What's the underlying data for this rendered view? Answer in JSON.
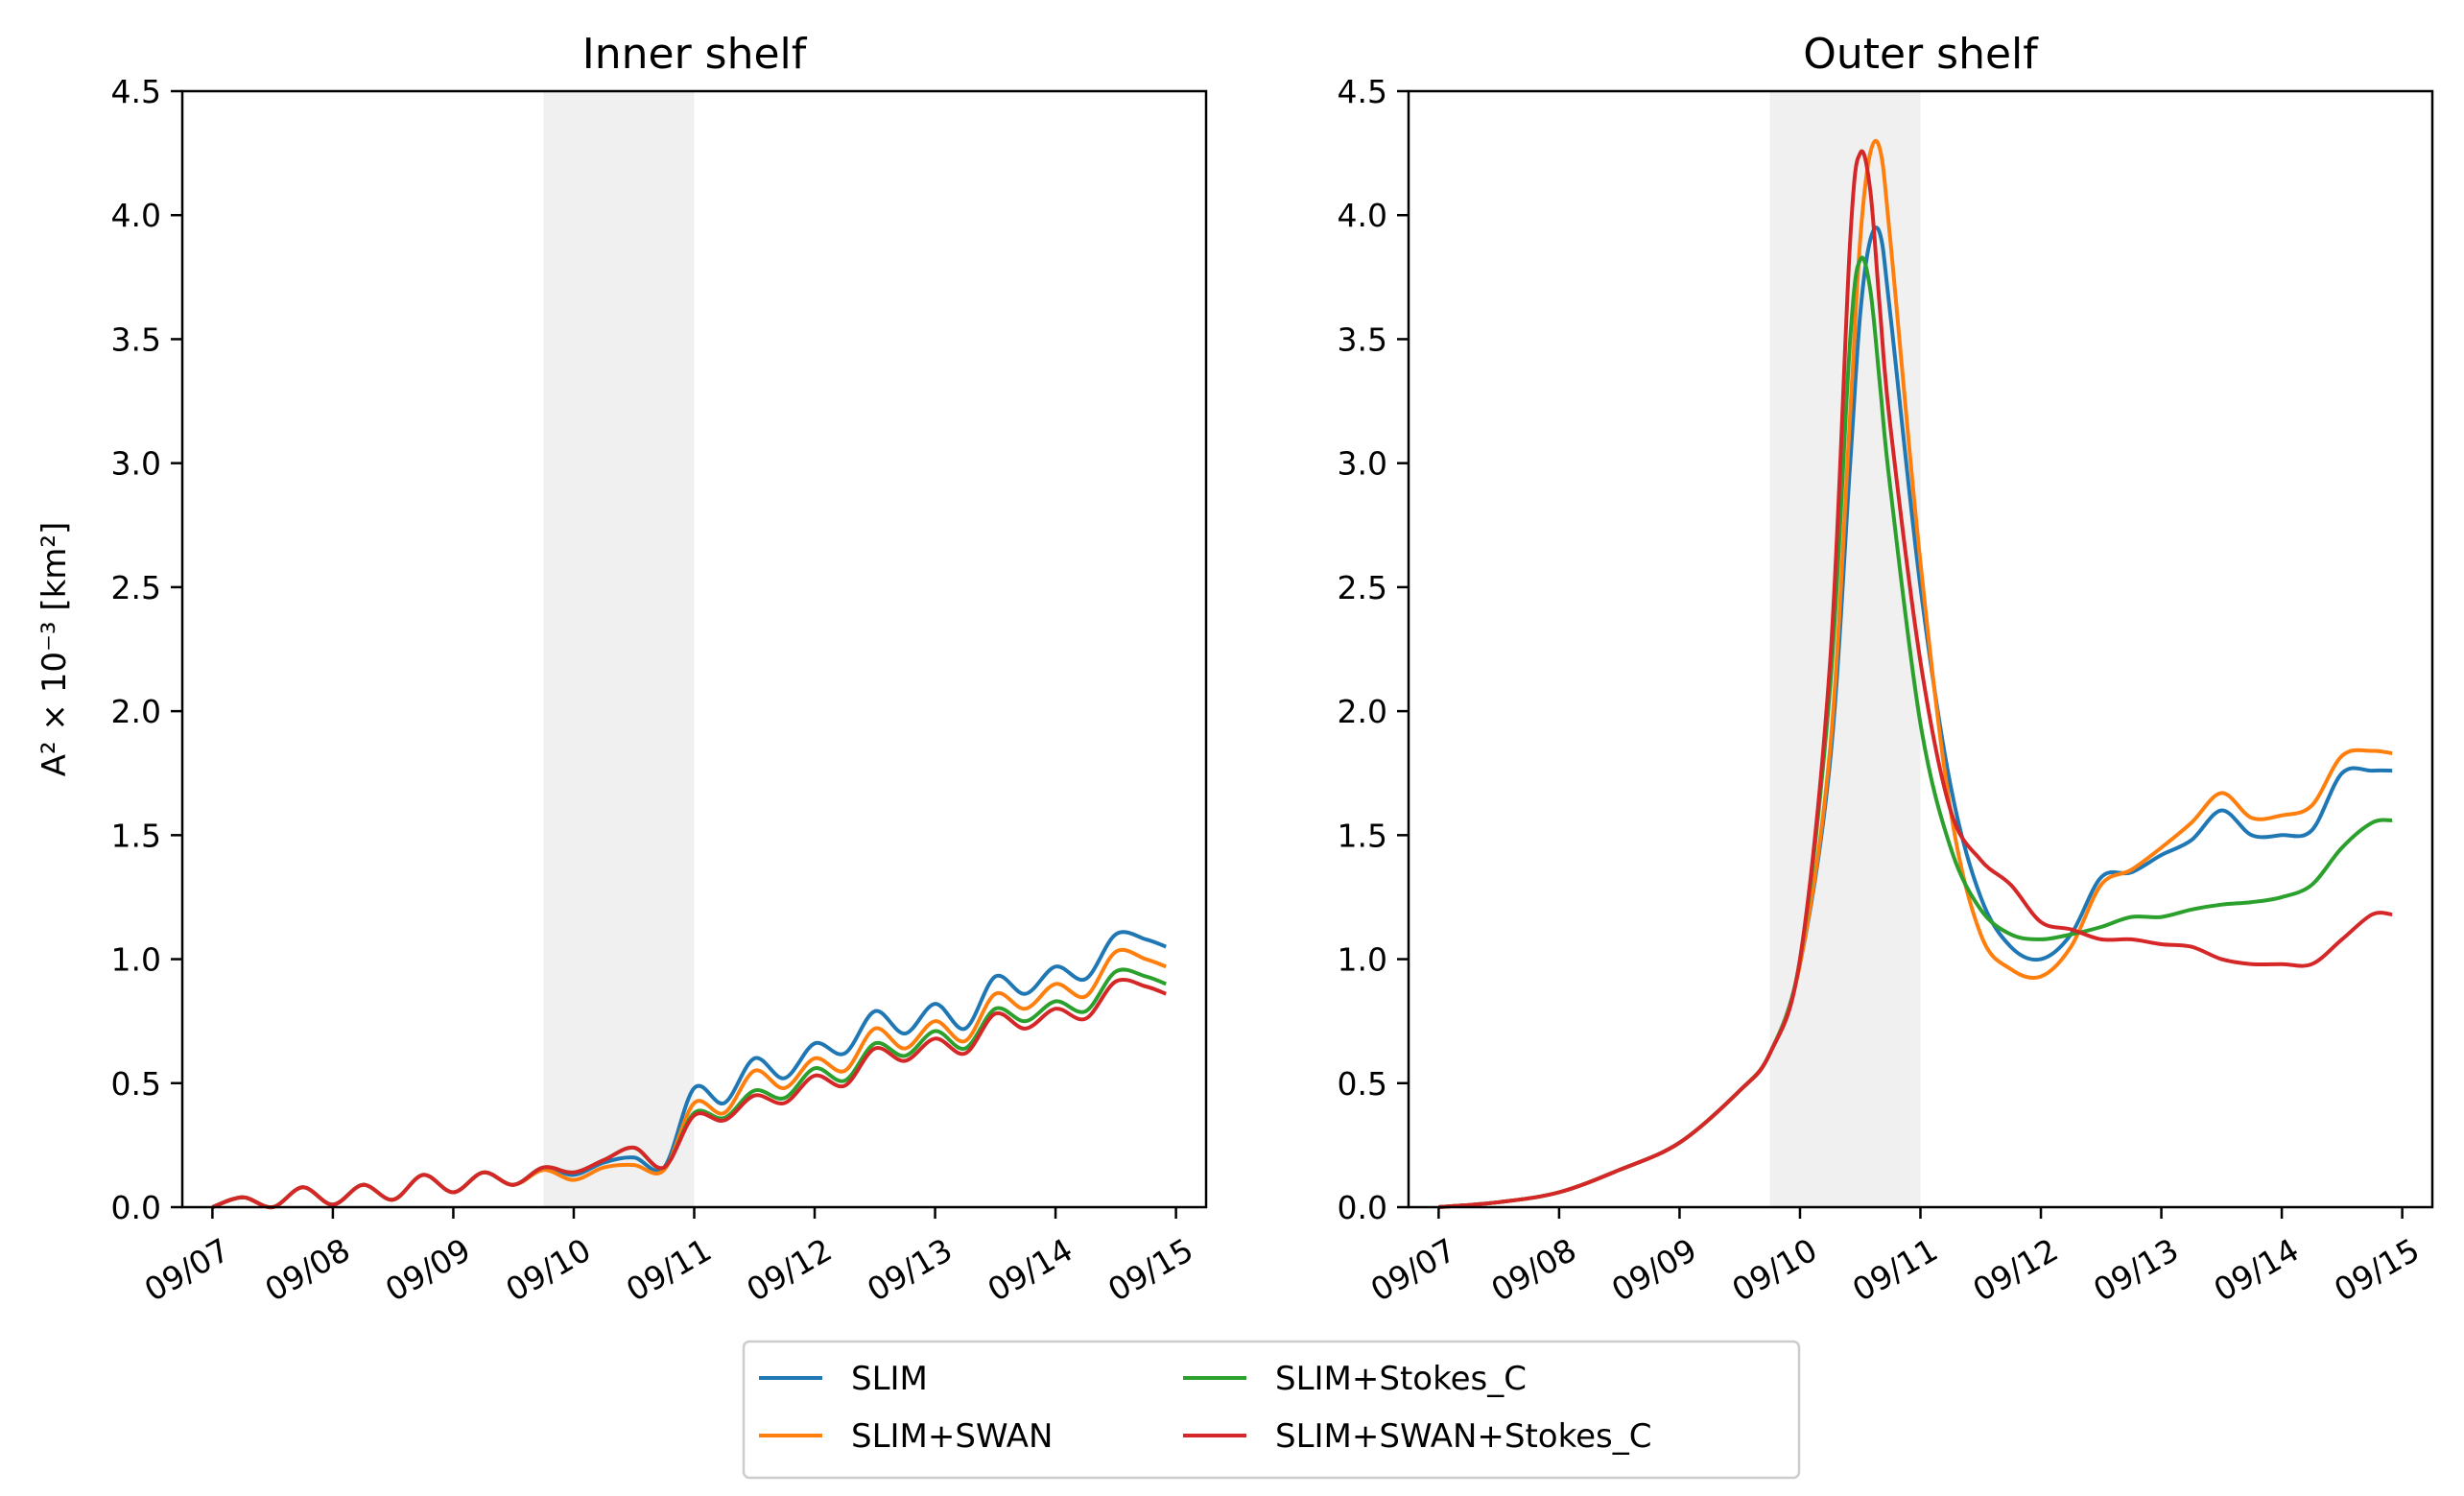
{
  "chart_data": [
    {
      "type": "line",
      "title": "Inner shelf",
      "xlabel": "",
      "ylabel": "A² × 10⁻³ [km²]",
      "x_tick_labels": [
        "09/07",
        "09/08",
        "09/09",
        "09/10",
        "09/11",
        "09/12",
        "09/13",
        "09/14",
        "09/15"
      ],
      "y_tick_labels": [
        "0.0",
        "0.5",
        "1.0",
        "1.5",
        "2.0",
        "2.5",
        "3.0",
        "3.5",
        "4.0",
        "4.5"
      ],
      "xlim": [
        "09/06 18:00",
        "09/15 06:00"
      ],
      "ylim": [
        0,
        4.5
      ],
      "shaded_span": [
        "09/09 18:00",
        "09/11 00:00"
      ],
      "x": [
        "09/07 00:00",
        "09/07 06:00",
        "09/07 12:00",
        "09/07 18:00",
        "09/08 00:00",
        "09/08 06:00",
        "09/08 12:00",
        "09/08 18:00",
        "09/09 00:00",
        "09/09 06:00",
        "09/09 12:00",
        "09/09 18:00",
        "09/10 00:00",
        "09/10 06:00",
        "09/10 12:00",
        "09/10 18:00",
        "09/11 00:00",
        "09/11 06:00",
        "09/11 12:00",
        "09/11 18:00",
        "09/12 00:00",
        "09/12 06:00",
        "09/12 12:00",
        "09/12 18:00",
        "09/13 00:00",
        "09/13 06:00",
        "09/13 12:00",
        "09/13 18:00",
        "09/14 00:00",
        "09/14 06:00",
        "09/14 12:00",
        "09/14 18:00",
        "09/14 22:00"
      ],
      "series": [
        {
          "name": "SLIM",
          "color": "#1f77b4",
          "values": [
            0.0,
            0.04,
            0.0,
            0.08,
            0.01,
            0.09,
            0.03,
            0.13,
            0.06,
            0.14,
            0.09,
            0.16,
            0.13,
            0.18,
            0.2,
            0.16,
            0.48,
            0.42,
            0.6,
            0.52,
            0.66,
            0.62,
            0.79,
            0.7,
            0.82,
            0.72,
            0.93,
            0.86,
            0.97,
            0.92,
            1.1,
            1.08,
            1.05
          ]
        },
        {
          "name": "SLIM+SWAN",
          "color": "#ff7f0e",
          "values": [
            0.0,
            0.04,
            0.0,
            0.08,
            0.01,
            0.09,
            0.03,
            0.13,
            0.06,
            0.14,
            0.09,
            0.15,
            0.11,
            0.16,
            0.17,
            0.15,
            0.42,
            0.38,
            0.55,
            0.48,
            0.6,
            0.55,
            0.72,
            0.64,
            0.75,
            0.67,
            0.86,
            0.8,
            0.9,
            0.85,
            1.03,
            1.0,
            0.97
          ]
        },
        {
          "name": "SLIM+Stokes_C",
          "color": "#2ca02c",
          "values": [
            0.0,
            0.04,
            0.0,
            0.08,
            0.01,
            0.09,
            0.03,
            0.13,
            0.06,
            0.14,
            0.09,
            0.16,
            0.14,
            0.19,
            0.24,
            0.16,
            0.38,
            0.36,
            0.47,
            0.44,
            0.56,
            0.51,
            0.66,
            0.61,
            0.71,
            0.64,
            0.8,
            0.75,
            0.83,
            0.79,
            0.95,
            0.93,
            0.9
          ]
        },
        {
          "name": "SLIM+SWAN+Stokes_C",
          "color": "#d62728",
          "values": [
            0.0,
            0.04,
            0.0,
            0.08,
            0.01,
            0.09,
            0.03,
            0.13,
            0.06,
            0.14,
            0.09,
            0.16,
            0.14,
            0.19,
            0.24,
            0.16,
            0.37,
            0.35,
            0.45,
            0.42,
            0.53,
            0.49,
            0.64,
            0.59,
            0.68,
            0.62,
            0.78,
            0.72,
            0.8,
            0.76,
            0.91,
            0.89,
            0.86
          ]
        }
      ]
    },
    {
      "type": "line",
      "title": "Outer shelf",
      "xlabel": "",
      "ylabel": "",
      "x_tick_labels": [
        "09/07",
        "09/08",
        "09/09",
        "09/10",
        "09/11",
        "09/12",
        "09/13",
        "09/14",
        "09/15"
      ],
      "y_tick_labels": [
        "0.0",
        "0.5",
        "1.0",
        "1.5",
        "2.0",
        "2.5",
        "3.0",
        "3.5",
        "4.0",
        "4.5"
      ],
      "xlim": [
        "09/06 18:00",
        "09/15 06:00"
      ],
      "ylim": [
        0,
        4.5
      ],
      "shaded_span": [
        "09/09 18:00",
        "09/11 00:00"
      ],
      "x": [
        "09/07 00:00",
        "09/07 12:00",
        "09/08 00:00",
        "09/08 12:00",
        "09/09 00:00",
        "09/09 12:00",
        "09/09 18:00",
        "09/10 00:00",
        "09/10 06:00",
        "09/10 10:00",
        "09/10 12:00",
        "09/10 14:00",
        "09/10 16:00",
        "09/10 18:00",
        "09/11 00:00",
        "09/11 06:00",
        "09/11 12:00",
        "09/11 18:00",
        "09/12 00:00",
        "09/12 06:00",
        "09/12 12:00",
        "09/12 18:00",
        "09/13 00:00",
        "09/13 06:00",
        "09/13 12:00",
        "09/13 18:00",
        "09/14 00:00",
        "09/14 06:00",
        "09/14 12:00",
        "09/14 18:00",
        "09/14 22:00"
      ],
      "series": [
        {
          "name": "SLIM",
          "color": "#1f77b4",
          "values": [
            0.0,
            0.02,
            0.06,
            0.15,
            0.26,
            0.47,
            0.62,
            0.98,
            1.8,
            3.0,
            3.6,
            3.9,
            3.92,
            3.6,
            2.5,
            1.7,
            1.25,
            1.05,
            1.0,
            1.1,
            1.33,
            1.35,
            1.42,
            1.48,
            1.6,
            1.5,
            1.5,
            1.52,
            1.75,
            1.76,
            1.76
          ]
        },
        {
          "name": "SLIM+SWAN",
          "color": "#ff7f0e",
          "values": [
            0.0,
            0.02,
            0.06,
            0.15,
            0.26,
            0.47,
            0.62,
            0.98,
            1.85,
            3.2,
            3.9,
            4.25,
            4.26,
            3.9,
            2.6,
            1.6,
            1.1,
            0.96,
            0.93,
            1.05,
            1.3,
            1.36,
            1.45,
            1.55,
            1.67,
            1.57,
            1.58,
            1.62,
            1.82,
            1.84,
            1.83
          ]
        },
        {
          "name": "SLIM+Stokes_C",
          "color": "#2ca02c",
          "values": [
            0.0,
            0.02,
            0.06,
            0.15,
            0.26,
            0.47,
            0.62,
            1.0,
            2.1,
            3.5,
            3.82,
            3.7,
            3.3,
            2.9,
            1.95,
            1.45,
            1.2,
            1.1,
            1.08,
            1.1,
            1.13,
            1.17,
            1.17,
            1.2,
            1.22,
            1.23,
            1.25,
            1.3,
            1.45,
            1.55,
            1.56
          ]
        },
        {
          "name": "SLIM+SWAN+Stokes_C",
          "color": "#d62728",
          "values": [
            0.0,
            0.02,
            0.06,
            0.15,
            0.26,
            0.47,
            0.62,
            1.0,
            2.2,
            3.9,
            4.25,
            4.1,
            3.6,
            3.15,
            2.2,
            1.6,
            1.4,
            1.3,
            1.15,
            1.12,
            1.08,
            1.08,
            1.06,
            1.05,
            1.0,
            0.98,
            0.98,
            0.98,
            1.08,
            1.18,
            1.18
          ]
        }
      ]
    }
  ]
}
